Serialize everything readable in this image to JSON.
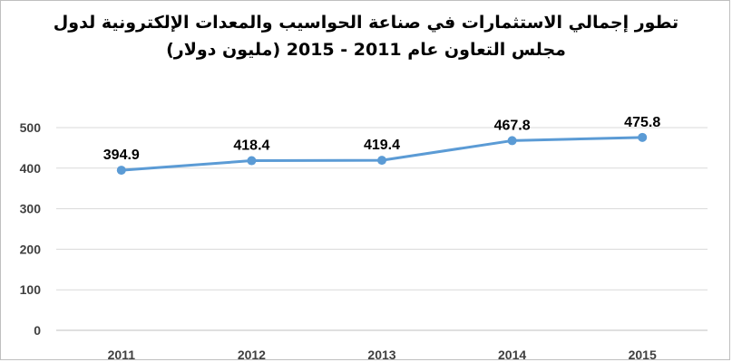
{
  "chart_data": {
    "type": "line",
    "title_line1": "تطور إجمالي الاستثمارات في صناعة الحواسيب والمعدات الإلكترونية لدول",
    "title_line2": "مجلس التعاون عام 2011 - 2015 (مليون دولار)",
    "categories": [
      "2011",
      "2012",
      "2013",
      "2014",
      "2015"
    ],
    "series": [
      {
        "values": [
          394.9,
          418.4,
          419.4,
          467.8,
          475.8
        ],
        "color": "#5b9bd5"
      }
    ],
    "data_labels": [
      "394.9",
      "418.4",
      "419.4",
      "467.8",
      "475.8"
    ],
    "ylim": [
      0,
      500
    ],
    "yticks": [
      "0",
      "100",
      "200",
      "300",
      "400",
      "500"
    ],
    "grid": true,
    "legend": "none",
    "grid_color": "#d9d9d9",
    "axis_color": "#bfbfbf"
  }
}
